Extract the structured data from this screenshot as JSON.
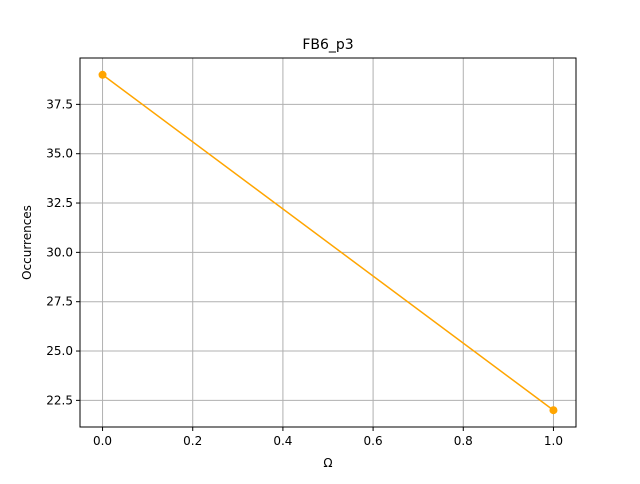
{
  "chart_data": {
    "type": "line",
    "title": "FB6_p3",
    "xlabel": "Ω",
    "ylabel": "Occurrences",
    "x": [
      0,
      1
    ],
    "series": [
      {
        "values": [
          39,
          22
        ],
        "color": "#ffa500",
        "marker": "circle"
      }
    ],
    "xlim": [
      -0.05,
      1.05
    ],
    "ylim": [
      21.15,
      39.85
    ],
    "xticks": [
      0.0,
      0.2,
      0.4,
      0.6,
      0.8,
      1.0
    ],
    "xtick_labels": [
      "0.0",
      "0.2",
      "0.4",
      "0.6",
      "0.8",
      "1.0"
    ],
    "yticks": [
      22.5,
      25.0,
      27.5,
      30.0,
      32.5,
      35.0,
      37.5
    ],
    "ytick_labels": [
      "22.5",
      "25.0",
      "27.5",
      "30.0",
      "32.5",
      "35.0",
      "37.5"
    ],
    "grid": true,
    "grid_color": "#b0b0b0"
  }
}
